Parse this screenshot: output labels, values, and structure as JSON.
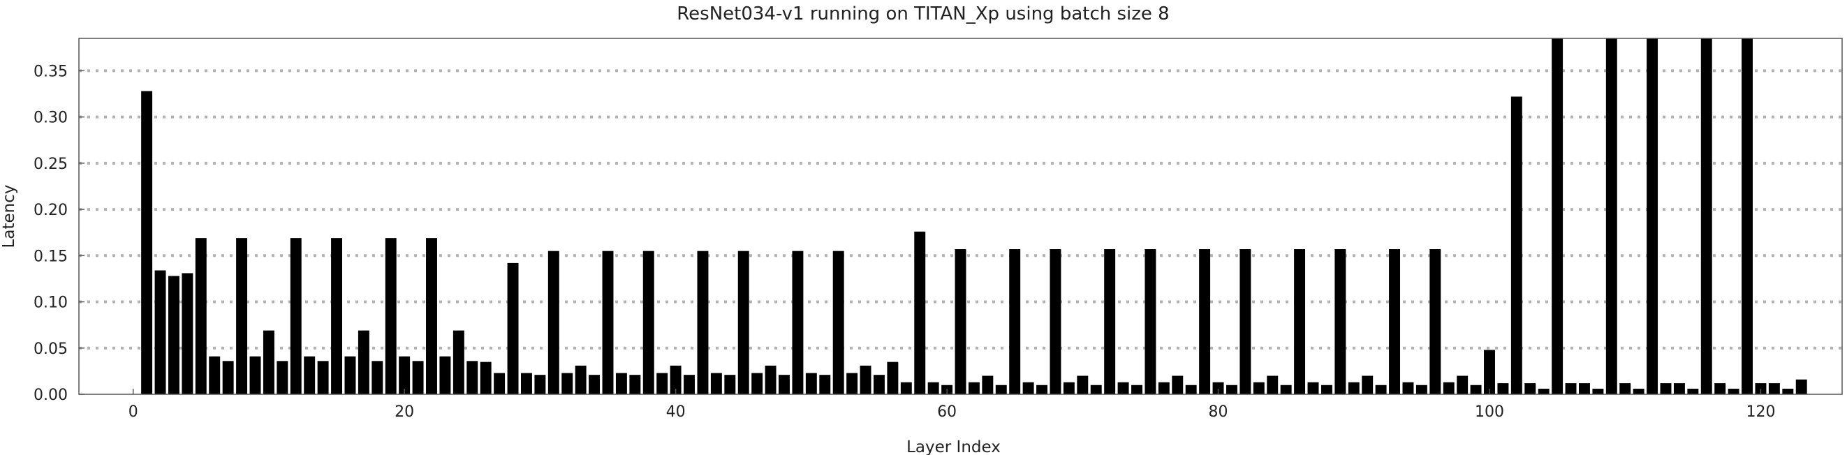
{
  "chart_data": {
    "type": "bar",
    "title": "ResNet034-v1 running on TITAN_Xp using batch size 8",
    "xlabel": "Layer Index",
    "ylabel": "Latency",
    "xlim": [
      -4,
      126
    ],
    "ylim": [
      0,
      0.385
    ],
    "xticks": [
      0,
      20,
      40,
      60,
      80,
      100,
      120
    ],
    "xtick_labels": [
      "0",
      "20",
      "40",
      "60",
      "80",
      "100",
      "120"
    ],
    "yticks": [
      0.0,
      0.05,
      0.1,
      0.15,
      0.2,
      0.25,
      0.3,
      0.35
    ],
    "ytick_labels": [
      "0.00",
      "0.05",
      "0.10",
      "0.15",
      "0.20",
      "0.25",
      "0.30",
      "0.35"
    ],
    "grid": "horizontal-dotted",
    "bar_color": "#000000",
    "grid_color": "#b3b3b3",
    "x": [
      1,
      2,
      3,
      4,
      5,
      6,
      7,
      8,
      9,
      10,
      11,
      12,
      13,
      14,
      15,
      16,
      17,
      18,
      19,
      20,
      21,
      22,
      23,
      24,
      25,
      26,
      27,
      28,
      29,
      30,
      31,
      32,
      33,
      34,
      35,
      36,
      37,
      38,
      39,
      40,
      41,
      42,
      43,
      44,
      45,
      46,
      47,
      48,
      49,
      50,
      51,
      52,
      53,
      54,
      55,
      56,
      57,
      58,
      59,
      60,
      61,
      62,
      63,
      64,
      65,
      66,
      67,
      68,
      69,
      70,
      71,
      72,
      73,
      74,
      75,
      76,
      77,
      78,
      79,
      80,
      81,
      82,
      83,
      84,
      85,
      86,
      87,
      88,
      89,
      90,
      91,
      92,
      93,
      94,
      95,
      96,
      97,
      98,
      99,
      100,
      101,
      102,
      103,
      104,
      105,
      106,
      107,
      108,
      109,
      110,
      111,
      112,
      113,
      114,
      115,
      116,
      117,
      118,
      119,
      120,
      121,
      122,
      123,
      124
    ],
    "values": [
      0.328,
      0.134,
      0.128,
      0.131,
      0.169,
      0.041,
      0.036,
      0.169,
      0.041,
      0.069,
      0.036,
      0.169,
      0.041,
      0.036,
      0.169,
      0.041,
      0.069,
      0.036,
      0.169,
      0.041,
      0.036,
      0.169,
      0.041,
      0.069,
      0.036,
      0.035,
      0.023,
      0.142,
      0.023,
      0.021,
      0.155,
      0.023,
      0.031,
      0.021,
      0.155,
      0.023,
      0.021,
      0.155,
      0.023,
      0.031,
      0.021,
      0.155,
      0.023,
      0.021,
      0.155,
      0.023,
      0.031,
      0.021,
      0.155,
      0.023,
      0.021,
      0.155,
      0.023,
      0.031,
      0.021,
      0.035,
      0.013,
      0.176,
      0.013,
      0.01,
      0.157,
      0.013,
      0.02,
      0.01,
      0.157,
      0.013,
      0.01,
      0.157,
      0.013,
      0.02,
      0.01,
      0.157,
      0.013,
      0.01,
      0.157,
      0.013,
      0.02,
      0.01,
      0.157,
      0.013,
      0.01,
      0.157,
      0.013,
      0.02,
      0.01,
      0.157,
      0.013,
      0.01,
      0.157,
      0.013,
      0.02,
      0.01,
      0.157,
      0.013,
      0.01,
      0.157,
      0.013,
      0.02,
      0.01,
      0.048,
      0.012,
      0.322,
      0.012,
      0.006,
      0.385,
      0.012,
      0.012,
      0.006,
      0.385,
      0.012,
      0.006,
      0.385,
      0.012,
      0.012,
      0.006,
      0.385,
      0.012,
      0.006,
      0.385,
      0.012,
      0.012,
      0.006,
      0.016,
      0.0
    ]
  }
}
